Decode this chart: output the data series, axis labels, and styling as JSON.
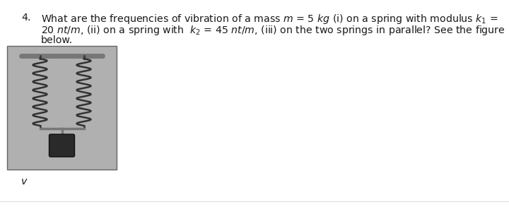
{
  "background_color": "#ffffff",
  "question_number": "4.",
  "line1": "What are the frequencies of vibration of a mass $m$ = 5 $kg$ (i) on a spring with modulus $k_1$ =",
  "line2": "20 $nt/m$, (ii) on a spring with  $k_2$ = 45 $nt/m$, (iii) on the two springs in parallel? See the figure",
  "line3": "below.",
  "label_v": "v",
  "text_color": "#1a1a1a",
  "font_size_main": 10.2,
  "box_bg": "#b0b0b0",
  "spring_color": "#333333",
  "mass_color": "#2a2a2a",
  "bar_color": "#777777"
}
